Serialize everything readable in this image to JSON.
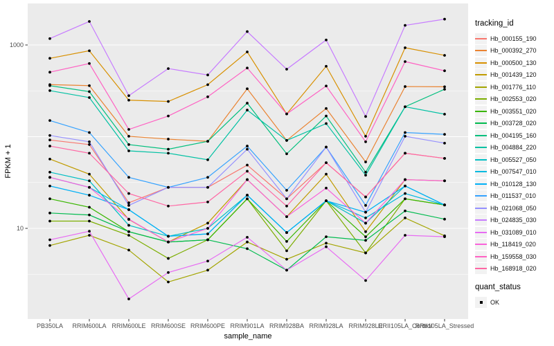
{
  "figure": {
    "y_axis_title": "FPKM + 1",
    "x_axis_title": "sample_name",
    "legend": {
      "tracking_title": "tracking_id",
      "quant_title": "quant_status",
      "quant_ok_label": "OK"
    },
    "colors": {
      "panel_bg": "#EBEBEB",
      "gridline": "#FFFFFF",
      "axis_text": "#4D4D4D",
      "point": "#000000",
      "legend_key_bg": "#F2F2F2"
    }
  },
  "chart_data": {
    "type": "line",
    "title": "",
    "xlabel": "sample_name",
    "ylabel": "FPKM + 1",
    "y_scale": "log10",
    "ylim": [
      1,
      2900
    ],
    "y_tick_labels": [
      {
        "value": 1000,
        "label": "1000"
      },
      {
        "value": 10,
        "label": "10"
      }
    ],
    "y_gridlines_major": [
      10,
      100,
      1000
    ],
    "y_gridlines_minor": [
      3.162,
      31.62,
      316.2
    ],
    "grid": true,
    "legend_position": "right",
    "legend_title": "tracking_id",
    "point_legend": {
      "title": "quant_status",
      "label": "OK",
      "color": "#000000"
    },
    "categories": [
      "PB350LA",
      "RRIM600LA",
      "RRIM600LE",
      "RRIM600SE",
      "RRIM600PE",
      "RRIM901LA",
      "RRIM928BA",
      "RRIM928LA",
      "RRIM928LE",
      "RRII105LA_Control",
      "RRII105LA_Stressed"
    ],
    "series": [
      {
        "name": "Hb_000155_190",
        "color": "#F8766D",
        "values": [
          92,
          82,
          19,
          28,
          28,
          49,
          21,
          52,
          22,
          66,
          58
        ]
      },
      {
        "name": "Hb_000392_270",
        "color": "#EA8331",
        "values": [
          370,
          360,
          101,
          94,
          89,
          333,
          91,
          203,
          53,
          352,
          350
        ]
      },
      {
        "name": "Hb_000500_130",
        "color": "#D89000",
        "values": [
          715,
          865,
          250,
          242,
          369,
          840,
          177,
          586,
          101,
          933,
          771
        ]
      },
      {
        "name": "Hb_001439_120",
        "color": "#C09B00",
        "values": [
          57,
          39,
          12.5,
          7.1,
          11.4,
          34,
          13.4,
          39,
          9.2,
          34,
          33
        ]
      },
      {
        "name": "Hb_001776_110",
        "color": "#A3A500",
        "values": [
          6.5,
          8.4,
          5.8,
          2.6,
          3.5,
          7.1,
          4.6,
          6.9,
          5.4,
          13,
          8.3
        ]
      },
      {
        "name": "Hb_002553_020",
        "color": "#7CAE00",
        "values": [
          12,
          12,
          8.4,
          4.7,
          7.5,
          21,
          5.7,
          20,
          5.4,
          21,
          18
        ]
      },
      {
        "name": "Hb_003551_020",
        "color": "#39B600",
        "values": [
          21,
          17,
          9.2,
          7.1,
          7.5,
          21,
          7.2,
          20,
          8.1,
          21,
          18
        ]
      },
      {
        "name": "Hb_003728_020",
        "color": "#00BB4E",
        "values": [
          14.7,
          14,
          9.2,
          7.1,
          7.5,
          6.0,
          3.5,
          8.1,
          7.4,
          15.5,
          12.6
        ]
      },
      {
        "name": "Hb_004195_160",
        "color": "#00BF7D",
        "values": [
          360,
          310,
          82,
          73,
          89,
          232,
          65,
          168,
          41,
          212,
          329
        ]
      },
      {
        "name": "Hb_004884_220",
        "color": "#00C1A3",
        "values": [
          318,
          267,
          70,
          66,
          56,
          195,
          91,
          139,
          38,
          212,
          176
        ]
      },
      {
        "name": "Hb_005527_050",
        "color": "#00BFC4",
        "values": [
          41,
          33,
          10.8,
          8.2,
          10,
          23,
          9,
          20,
          11.4,
          29,
          18
        ]
      },
      {
        "name": "Hb_007547_010",
        "color": "#00BAE0",
        "values": [
          36,
          28,
          16,
          8.2,
          8.7,
          23,
          9,
          20,
          13,
          24,
          18
        ]
      },
      {
        "name": "Hb_010128_130",
        "color": "#00B0F6",
        "values": [
          29,
          23,
          16,
          8.2,
          8.7,
          23,
          9,
          20,
          15,
          29,
          18
        ]
      },
      {
        "name": "Hb_011537_010",
        "color": "#35A2FF",
        "values": [
          150,
          111,
          36,
          28,
          36,
          79,
          26,
          77,
          17.8,
          111,
          106
        ]
      },
      {
        "name": "Hb_021068_050",
        "color": "#9590FF",
        "values": [
          103,
          88,
          17.8,
          28,
          28,
          73,
          21,
          77,
          15,
          101,
          85
        ]
      },
      {
        "name": "Hb_024835_030",
        "color": "#C77CFF",
        "values": [
          1175,
          1806,
          280,
          553,
          471,
          1400,
          544,
          1135,
          166,
          1637,
          1913
        ]
      },
      {
        "name": "Hb_031089_010",
        "color": "#E76BF3",
        "values": [
          7.5,
          9.3,
          1.7,
          3.3,
          4.4,
          8.0,
          3.5,
          6.3,
          2.7,
          8.4,
          8.1
        ]
      },
      {
        "name": "Hb_118419_020",
        "color": "#FA62DB",
        "values": [
          36,
          28,
          12.6,
          7.1,
          10,
          34,
          13.4,
          27.5,
          11.4,
          34,
          33
        ]
      },
      {
        "name": "Hb_159558_030",
        "color": "#FF61C3",
        "values": [
          505,
          628,
          120,
          168,
          272,
          561,
          177,
          357,
          88,
          659,
          523
        ]
      },
      {
        "name": "Hb_168918_020",
        "color": "#FF67A4",
        "values": [
          79,
          66,
          24,
          17.5,
          19.4,
          42,
          17.5,
          52,
          22,
          66,
          58
        ]
      }
    ]
  }
}
